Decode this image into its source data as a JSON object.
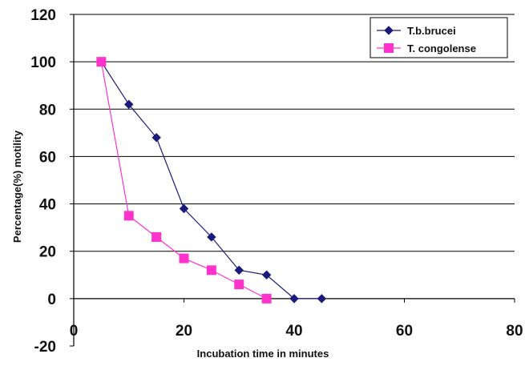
{
  "chart_data": {
    "type": "line",
    "title": "",
    "xlabel": "Incubation time in minutes",
    "ylabel": "Percentage(%) motility",
    "xlim": [
      0,
      80
    ],
    "ylim": [
      -20,
      120
    ],
    "x_ticks": [
      0,
      20,
      40,
      60,
      80
    ],
    "y_ticks": [
      -20,
      0,
      20,
      40,
      60,
      80,
      100,
      120
    ],
    "grid": "horizontal",
    "legend_position": "top-right",
    "series": [
      {
        "name": "T.b.brucei",
        "color": "#1a1a7a",
        "marker": "diamond",
        "points": [
          [
            5,
            100
          ],
          [
            10,
            82
          ],
          [
            15,
            68
          ],
          [
            20,
            38
          ],
          [
            25,
            26
          ],
          [
            30,
            12
          ],
          [
            35,
            10
          ],
          [
            40,
            0
          ],
          [
            45,
            0
          ]
        ]
      },
      {
        "name": "T. congolense",
        "color": "#ff33cc",
        "marker": "square",
        "points": [
          [
            5,
            100
          ],
          [
            10,
            35
          ],
          [
            15,
            26
          ],
          [
            20,
            17
          ],
          [
            25,
            12
          ],
          [
            30,
            6
          ],
          [
            35,
            0
          ]
        ]
      }
    ]
  }
}
